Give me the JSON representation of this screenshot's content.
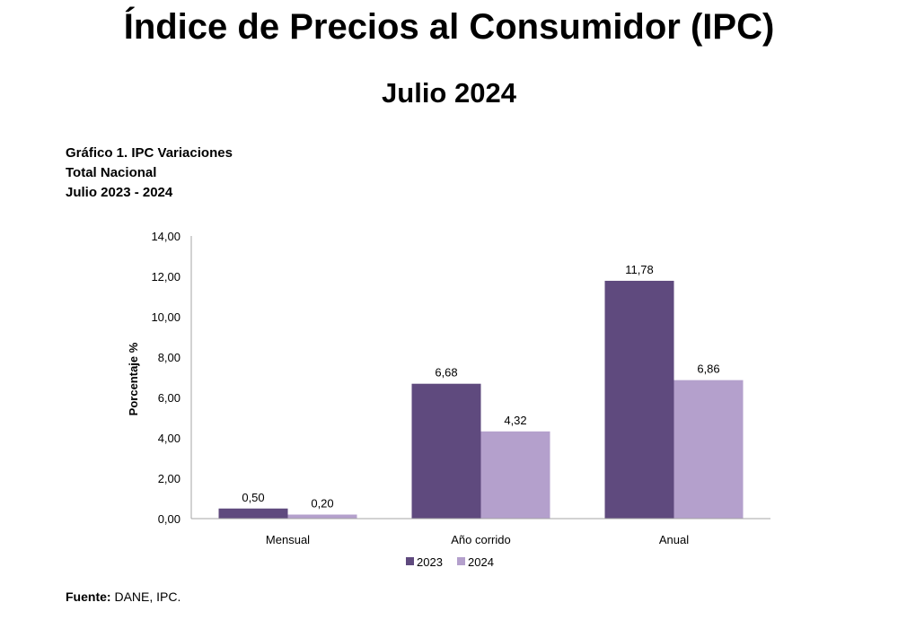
{
  "header": {
    "title": "Índice de Precios al Consumidor (IPC)",
    "subtitle": "Julio 2024"
  },
  "caption": {
    "line1": "Gráfico 1. IPC Variaciones",
    "line2": "Total Nacional",
    "line3": "Julio 2023 - 2024"
  },
  "footer": {
    "source_label": "Fuente:",
    "source_text": " DANE, IPC."
  },
  "chart_data": {
    "type": "bar",
    "title": "Gráfico 1. IPC Variaciones",
    "xlabel": "",
    "ylabel": "Porcentaje %",
    "ylim": [
      0,
      14
    ],
    "y_ticks": [
      "0,00",
      "2,00",
      "4,00",
      "6,00",
      "8,00",
      "10,00",
      "12,00",
      "14,00"
    ],
    "categories": [
      "Mensual",
      "Año corrido",
      "Anual"
    ],
    "series": [
      {
        "name": "2023",
        "color": "#5f4a7e",
        "values": [
          0.5,
          6.68,
          11.78
        ],
        "labels": [
          "0,50",
          "6,68",
          "11,78"
        ]
      },
      {
        "name": "2024",
        "color": "#b4a0cc",
        "values": [
          0.2,
          4.32,
          6.86
        ],
        "labels": [
          "0,20",
          "4,32",
          "6,86"
        ]
      }
    ],
    "legend_position": "bottom"
  }
}
